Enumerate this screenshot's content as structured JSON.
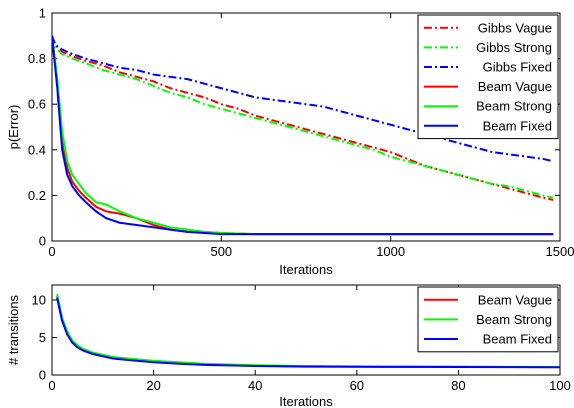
{
  "chart_data": [
    {
      "type": "line",
      "xlabel": "Iterations",
      "ylabel": "p(Error)",
      "xlim": [
        0,
        1500
      ],
      "ylim": [
        0,
        1
      ],
      "xticks": [
        0,
        500,
        1000,
        1500
      ],
      "yticks": [
        0,
        0.2,
        0.4,
        0.6,
        0.8,
        1
      ],
      "xtick_labels": [
        "0",
        "500",
        "1000",
        "1500"
      ],
      "ytick_labels": [
        "0",
        "0.2",
        "0.4",
        "0.6",
        "0.8",
        "1"
      ],
      "legend_position": "top-right",
      "grid": false,
      "series": [
        {
          "name": "Gibbs Vague",
          "color": "#ff0000",
          "dash": "dashdot",
          "x": [
            0,
            10,
            30,
            60,
            100,
            150,
            200,
            250,
            300,
            350,
            400,
            450,
            500,
            550,
            600,
            650,
            700,
            750,
            800,
            850,
            900,
            950,
            1000,
            1050,
            1100,
            1150,
            1200,
            1250,
            1300,
            1350,
            1400,
            1450,
            1480
          ],
          "y": [
            0.9,
            0.86,
            0.83,
            0.81,
            0.79,
            0.77,
            0.74,
            0.72,
            0.7,
            0.67,
            0.65,
            0.63,
            0.6,
            0.58,
            0.55,
            0.53,
            0.51,
            0.49,
            0.47,
            0.45,
            0.43,
            0.41,
            0.39,
            0.36,
            0.33,
            0.31,
            0.29,
            0.27,
            0.25,
            0.23,
            0.21,
            0.19,
            0.18
          ]
        },
        {
          "name": "Gibbs Strong",
          "color": "#00ff00",
          "dash": "dashdot",
          "x": [
            0,
            10,
            30,
            60,
            100,
            150,
            200,
            250,
            300,
            350,
            400,
            450,
            500,
            550,
            600,
            650,
            700,
            750,
            800,
            850,
            900,
            950,
            1000,
            1050,
            1100,
            1150,
            1200,
            1250,
            1300,
            1350,
            1400,
            1450,
            1480
          ],
          "y": [
            0.9,
            0.85,
            0.82,
            0.8,
            0.78,
            0.75,
            0.73,
            0.71,
            0.68,
            0.65,
            0.63,
            0.6,
            0.58,
            0.56,
            0.54,
            0.52,
            0.5,
            0.48,
            0.46,
            0.44,
            0.42,
            0.4,
            0.37,
            0.35,
            0.33,
            0.31,
            0.29,
            0.27,
            0.25,
            0.24,
            0.22,
            0.2,
            0.19
          ]
        },
        {
          "name": "Gibbs Fixed",
          "color": "#0000ff",
          "dash": "dashdot",
          "x": [
            0,
            10,
            30,
            60,
            100,
            150,
            200,
            250,
            300,
            350,
            400,
            450,
            500,
            550,
            600,
            650,
            700,
            750,
            800,
            850,
            900,
            950,
            1000,
            1050,
            1100,
            1150,
            1200,
            1250,
            1300,
            1350,
            1400,
            1450,
            1480
          ],
          "y": [
            0.9,
            0.86,
            0.84,
            0.82,
            0.8,
            0.78,
            0.76,
            0.75,
            0.73,
            0.72,
            0.71,
            0.69,
            0.67,
            0.65,
            0.63,
            0.62,
            0.61,
            0.6,
            0.59,
            0.57,
            0.55,
            0.53,
            0.51,
            0.49,
            0.47,
            0.45,
            0.43,
            0.41,
            0.39,
            0.38,
            0.37,
            0.36,
            0.35
          ]
        },
        {
          "name": "Beam Vague",
          "color": "#ff0000",
          "dash": "solid",
          "x": [
            0,
            15,
            30,
            45,
            60,
            80,
            100,
            130,
            160,
            200,
            250,
            300,
            350,
            400,
            450,
            500,
            600,
            700,
            800,
            900,
            1000,
            1100,
            1200,
            1300,
            1400,
            1480
          ],
          "y": [
            0.9,
            0.7,
            0.45,
            0.32,
            0.26,
            0.22,
            0.19,
            0.15,
            0.13,
            0.12,
            0.1,
            0.07,
            0.05,
            0.04,
            0.04,
            0.035,
            0.03,
            0.03,
            0.03,
            0.03,
            0.03,
            0.03,
            0.03,
            0.03,
            0.03,
            0.03
          ]
        },
        {
          "name": "Beam Strong",
          "color": "#00ff00",
          "dash": "solid",
          "x": [
            0,
            15,
            30,
            45,
            60,
            80,
            100,
            130,
            160,
            200,
            250,
            300,
            350,
            400,
            450,
            500,
            600,
            700,
            800,
            900,
            1000,
            1100,
            1200,
            1300,
            1400,
            1480
          ],
          "y": [
            0.9,
            0.72,
            0.48,
            0.35,
            0.29,
            0.25,
            0.21,
            0.17,
            0.16,
            0.13,
            0.1,
            0.08,
            0.06,
            0.05,
            0.04,
            0.035,
            0.03,
            0.03,
            0.03,
            0.03,
            0.03,
            0.03,
            0.03,
            0.03,
            0.03,
            0.03
          ]
        },
        {
          "name": "Beam Fixed",
          "color": "#0000ff",
          "dash": "solid",
          "x": [
            0,
            15,
            30,
            45,
            60,
            80,
            100,
            130,
            160,
            200,
            250,
            300,
            350,
            400,
            450,
            500,
            600,
            700,
            800,
            900,
            1000,
            1100,
            1200,
            1300,
            1400,
            1480
          ],
          "y": [
            0.9,
            0.68,
            0.4,
            0.29,
            0.24,
            0.2,
            0.17,
            0.13,
            0.1,
            0.08,
            0.07,
            0.06,
            0.05,
            0.04,
            0.035,
            0.03,
            0.03,
            0.03,
            0.03,
            0.03,
            0.03,
            0.03,
            0.03,
            0.03,
            0.03,
            0.03
          ]
        }
      ]
    },
    {
      "type": "line",
      "xlabel": "Iterations",
      "ylabel": "# transitions",
      "xlim": [
        0,
        100
      ],
      "ylim": [
        0,
        12
      ],
      "xticks": [
        0,
        20,
        40,
        60,
        80,
        100
      ],
      "yticks": [
        0,
        5,
        10
      ],
      "xtick_labels": [
        "0",
        "20",
        "40",
        "60",
        "80",
        "100"
      ],
      "ytick_labels": [
        "0",
        "5",
        "10"
      ],
      "legend_position": "top-right",
      "grid": false,
      "series": [
        {
          "name": "Beam Vague",
          "color": "#ff0000",
          "dash": "solid",
          "x": [
            1,
            2,
            3,
            4,
            5,
            6,
            8,
            10,
            12,
            15,
            20,
            25,
            30,
            40,
            50,
            60,
            70,
            80,
            90,
            100
          ],
          "y": [
            10.5,
            7.4,
            5.6,
            4.4,
            3.8,
            3.4,
            2.9,
            2.6,
            2.3,
            2.1,
            1.8,
            1.6,
            1.4,
            1.25,
            1.15,
            1.12,
            1.1,
            1.08,
            1.06,
            1.05
          ]
        },
        {
          "name": "Beam Strong",
          "color": "#00ff00",
          "dash": "solid",
          "x": [
            1,
            2,
            3,
            4,
            5,
            6,
            8,
            10,
            12,
            15,
            20,
            25,
            30,
            40,
            50,
            60,
            70,
            80,
            90,
            100
          ],
          "y": [
            10.8,
            7.6,
            5.8,
            4.6,
            4.0,
            3.5,
            3.0,
            2.7,
            2.4,
            2.2,
            1.9,
            1.7,
            1.5,
            1.3,
            1.2,
            1.15,
            1.12,
            1.1,
            1.08,
            1.07
          ]
        },
        {
          "name": "Beam Fixed",
          "color": "#0000ff",
          "dash": "solid",
          "x": [
            1,
            2,
            3,
            4,
            5,
            6,
            8,
            10,
            12,
            15,
            20,
            25,
            30,
            40,
            50,
            60,
            70,
            80,
            90,
            100
          ],
          "y": [
            10.3,
            7.2,
            5.4,
            4.3,
            3.7,
            3.3,
            2.8,
            2.5,
            2.2,
            2.0,
            1.7,
            1.5,
            1.35,
            1.2,
            1.12,
            1.1,
            1.08,
            1.06,
            1.05,
            1.04
          ]
        }
      ]
    }
  ]
}
